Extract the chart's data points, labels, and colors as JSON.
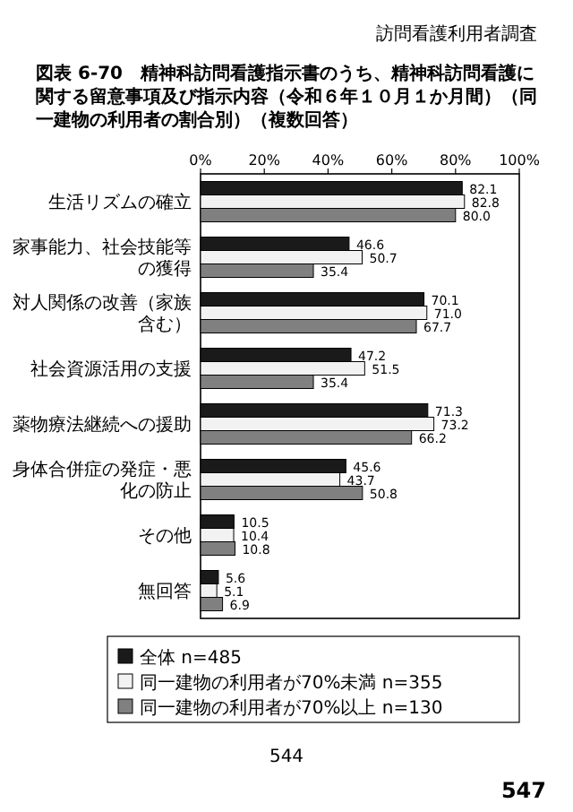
{
  "chart_data": {
    "type": "bar",
    "orientation": "horizontal",
    "title": "図表 6-70　精神科訪問看護指示書のうち、精神科訪問看護に関する留意事項及び指示内容（令和６年１０月１か月間）（同一建物の利用者の割合別）（複数回答）",
    "categories": [
      "生活リズムの確立",
      "家事能力、社会技能等の獲得",
      "対人関係の改善（家族含む）",
      "社会資源活用の支援",
      "薬物療法継続への援助",
      "身体合併症の発症・悪化の防止",
      "その他",
      "無回答"
    ],
    "series": [
      {
        "name": "全体 n=485",
        "color": "#1a1a1a",
        "values": [
          82.1,
          46.6,
          70.1,
          47.2,
          71.3,
          45.6,
          10.5,
          5.6
        ],
        "value_labels": [
          "82.1",
          "46.6",
          "70.1",
          "47.2",
          "71.3",
          "45.6",
          "10.5",
          "5.6"
        ]
      },
      {
        "name": "同一建物の利用者が70%未満 n=355",
        "color": "#f2f2f2",
        "values": [
          82.8,
          50.7,
          71.0,
          51.5,
          73.2,
          43.7,
          10.4,
          5.1
        ],
        "value_labels": [
          "82.8",
          "50.7",
          "71.0",
          "51.5",
          "73.2",
          "43.7",
          "10.4",
          "5.1"
        ]
      },
      {
        "name": "同一建物の利用者が70%以上 n=130",
        "color": "#808080",
        "values": [
          80.0,
          35.4,
          67.7,
          35.4,
          66.2,
          50.8,
          10.8,
          6.9
        ],
        "value_labels": [
          "80.0",
          "35.4",
          "67.7",
          "35.4",
          "66.2",
          "50.8",
          "10.8",
          "6.9"
        ]
      }
    ],
    "xlim": [
      0,
      100
    ],
    "xticks": [
      {
        "value": 0,
        "label": "0%"
      },
      {
        "value": 20,
        "label": "20%"
      },
      {
        "value": 40,
        "label": "40%"
      },
      {
        "value": 60,
        "label": "60%"
      },
      {
        "value": 80,
        "label": "80%"
      },
      {
        "value": 100,
        "label": "100%"
      }
    ],
    "legend": "bottom",
    "annotations": [
      "訪問看護利用者調査",
      "544",
      "547"
    ]
  }
}
